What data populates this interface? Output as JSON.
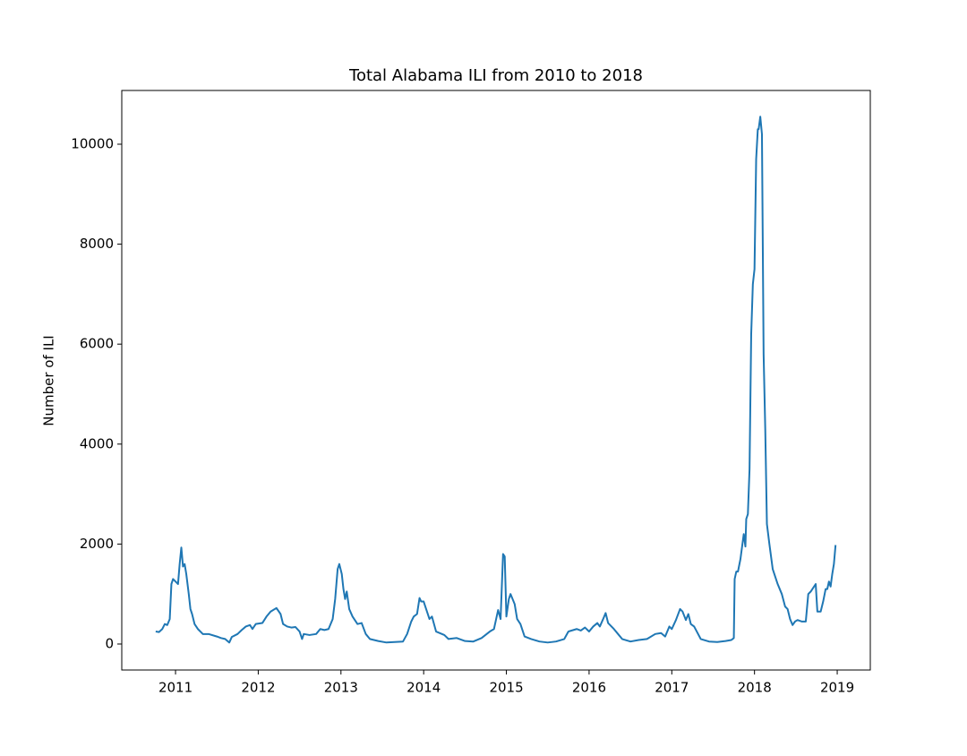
{
  "chart_data": {
    "type": "line",
    "title": "Total Alabama ILI from 2010 to 2018",
    "y_label": "Number of ILI",
    "xlim": [
      2010.35,
      2019.4
    ],
    "ylim": [
      -520,
      11075
    ],
    "xticks": [
      2011,
      2012,
      2013,
      2014,
      2015,
      2016,
      2017,
      2018,
      2019
    ],
    "yticks": [
      0,
      2000,
      4000,
      6000,
      8000,
      10000
    ],
    "grid": false,
    "series": [
      {
        "color": "#1f77b4",
        "x": [
          2010.76,
          2010.8,
          2010.84,
          2010.87,
          2010.9,
          2010.93,
          2010.95,
          2010.97,
          2011.0,
          2011.03,
          2011.05,
          2011.07,
          2011.09,
          2011.11,
          2011.13,
          2011.16,
          2011.18,
          2011.2,
          2011.23,
          2011.27,
          2011.33,
          2011.4,
          2011.5,
          2011.55,
          2011.6,
          2011.65,
          2011.68,
          2011.75,
          2011.8,
          2011.85,
          2011.9,
          2011.93,
          2011.97,
          2012.05,
          2012.1,
          2012.15,
          2012.22,
          2012.27,
          2012.3,
          2012.35,
          2012.4,
          2012.45,
          2012.5,
          2012.53,
          2012.55,
          2012.62,
          2012.7,
          2012.75,
          2012.8,
          2012.85,
          2012.9,
          2012.93,
          2012.96,
          2012.98,
          2013.01,
          2013.03,
          2013.05,
          2013.07,
          2013.1,
          2013.14,
          2013.2,
          2013.25,
          2013.3,
          2013.35,
          2013.45,
          2013.55,
          2013.65,
          2013.75,
          2013.8,
          2013.85,
          2013.88,
          2013.92,
          2013.95,
          2013.97,
          2014.0,
          2014.03,
          2014.07,
          2014.1,
          2014.15,
          2014.25,
          2014.3,
          2014.4,
          2014.5,
          2014.6,
          2014.7,
          2014.8,
          2014.85,
          2014.9,
          2014.93,
          2014.96,
          2014.98,
          2015.0,
          2015.03,
          2015.05,
          2015.1,
          2015.13,
          2015.17,
          2015.22,
          2015.3,
          2015.4,
          2015.5,
          2015.6,
          2015.7,
          2015.75,
          2015.85,
          2015.9,
          2015.95,
          2016.0,
          2016.05,
          2016.1,
          2016.13,
          2016.17,
          2016.2,
          2016.23,
          2016.3,
          2016.35,
          2016.4,
          2016.5,
          2016.6,
          2016.7,
          2016.8,
          2016.87,
          2016.92,
          2016.97,
          2017.0,
          2017.05,
          2017.1,
          2017.13,
          2017.17,
          2017.2,
          2017.23,
          2017.27,
          2017.35,
          2017.45,
          2017.55,
          2017.65,
          2017.72,
          2017.75,
          2017.76,
          2017.78,
          2017.8,
          2017.83,
          2017.85,
          2017.87,
          2017.89,
          2017.9,
          2017.92,
          2017.94,
          2017.96,
          2017.98,
          2018.0,
          2018.02,
          2018.04,
          2018.05,
          2018.07,
          2018.09,
          2018.11,
          2018.13,
          2018.15,
          2018.18,
          2018.22,
          2018.28,
          2018.33,
          2018.37,
          2018.4,
          2018.43,
          2018.46,
          2018.49,
          2018.52,
          2018.57,
          2018.62,
          2018.65,
          2018.68,
          2018.72,
          2018.74,
          2018.76,
          2018.8,
          2018.83,
          2018.86,
          2018.88,
          2018.9,
          2018.92,
          2018.94,
          2018.96,
          2018.98
        ],
        "values": [
          250,
          240,
          300,
          400,
          380,
          500,
          1200,
          1300,
          1250,
          1200,
          1600,
          1930,
          1550,
          1600,
          1400,
          1000,
          700,
          600,
          400,
          300,
          200,
          200,
          150,
          120,
          100,
          30,
          140,
          200,
          280,
          350,
          380,
          300,
          400,
          420,
          550,
          650,
          720,
          600,
          400,
          350,
          330,
          340,
          250,
          100,
          200,
          180,
          200,
          300,
          280,
          300,
          500,
          900,
          1500,
          1600,
          1400,
          1100,
          900,
          1050,
          700,
          550,
          400,
          420,
          200,
          100,
          60,
          30,
          40,
          50,
          200,
          450,
          550,
          600,
          920,
          850,
          850,
          700,
          500,
          550,
          250,
          180,
          100,
          120,
          60,
          50,
          120,
          250,
          300,
          680,
          500,
          1800,
          1750,
          550,
          900,
          1000,
          800,
          500,
          400,
          150,
          100,
          50,
          30,
          50,
          100,
          250,
          300,
          270,
          330,
          250,
          350,
          420,
          350,
          500,
          620,
          420,
          300,
          200,
          100,
          50,
          80,
          100,
          200,
          220,
          150,
          350,
          300,
          480,
          700,
          650,
          480,
          600,
          400,
          350,
          100,
          50,
          40,
          60,
          80,
          120,
          1300,
          1450,
          1450,
          1700,
          1950,
          2200,
          1950,
          2500,
          2600,
          3500,
          6200,
          7200,
          7500,
          9700,
          10300,
          10300,
          10550,
          10200,
          5800,
          4300,
          2400,
          2000,
          1500,
          1200,
          1000,
          750,
          700,
          500,
          380,
          450,
          480,
          450,
          450,
          1000,
          1050,
          1150,
          1200,
          650,
          650,
          850,
          1100,
          1100,
          1250,
          1150,
          1400,
          1600,
          1980
        ]
      }
    ]
  }
}
